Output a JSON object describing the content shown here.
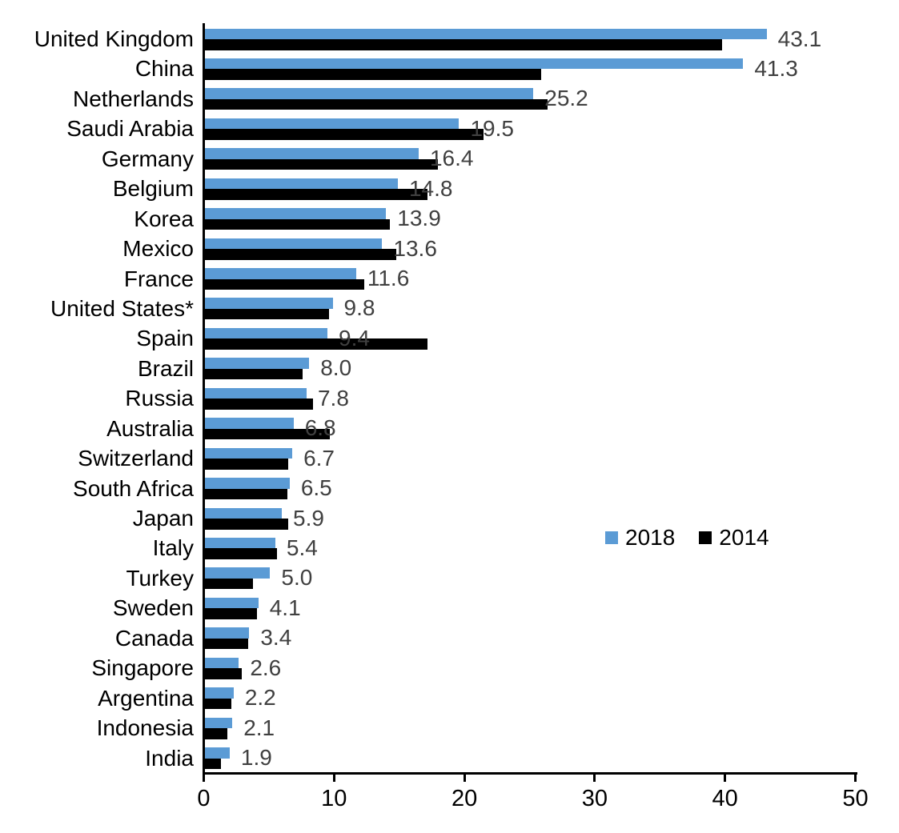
{
  "chart_data": {
    "type": "bar",
    "orientation": "horizontal",
    "title": "",
    "xlabel": "",
    "ylabel": "",
    "xlim": [
      0,
      50
    ],
    "x_ticks": [
      "0",
      "10",
      "20",
      "30",
      "40",
      "50"
    ],
    "grid": false,
    "axis_color": "#000000",
    "value_label_color": "#404040",
    "categories": [
      "United Kingdom",
      "China",
      "Netherlands",
      "Saudi Arabia",
      "Germany",
      "Belgium",
      "Korea",
      "Mexico",
      "France",
      "United States*",
      "Spain",
      "Brazil",
      "Russia",
      "Australia",
      "Switzerland",
      "South Africa",
      "Japan",
      "Italy",
      "Turkey",
      "Sweden",
      "Canada",
      "Singapore",
      "Argentina",
      "Indonesia",
      "India"
    ],
    "series": [
      {
        "name": "2018",
        "color": "#5B9BD5",
        "values": [
          43.1,
          41.3,
          25.2,
          19.5,
          16.4,
          14.8,
          13.9,
          13.6,
          11.6,
          9.8,
          9.4,
          8.0,
          7.8,
          6.8,
          6.7,
          6.5,
          5.9,
          5.4,
          5.0,
          4.1,
          3.4,
          2.6,
          2.2,
          2.1,
          1.9
        ]
      },
      {
        "name": "2014",
        "color": "#000000",
        "values": [
          39.7,
          25.8,
          26.3,
          21.4,
          17.9,
          17.1,
          14.2,
          14.7,
          12.2,
          9.5,
          17.1,
          7.5,
          8.3,
          9.6,
          6.4,
          6.3,
          6.4,
          5.5,
          3.7,
          4.0,
          3.3,
          2.8,
          2.0,
          1.7,
          1.2
        ]
      }
    ],
    "data_labels": [
      "43.1",
      "41.3",
      "25.2",
      "19.5",
      "16.4",
      "14.8",
      "13.9",
      "13.6",
      "11.6",
      "9.8",
      "9.4",
      "8.0",
      "7.8",
      "6.8",
      "6.7",
      "6.5",
      "5.9",
      "5.4",
      "5.0",
      "4.1",
      "3.4",
      "2.6",
      "2.2",
      "2.1",
      "1.9"
    ],
    "legend": {
      "position": "middle-right",
      "entries": [
        {
          "label": "2018",
          "color": "#5B9BD5"
        },
        {
          "label": "2014",
          "color": "#000000"
        }
      ]
    }
  }
}
